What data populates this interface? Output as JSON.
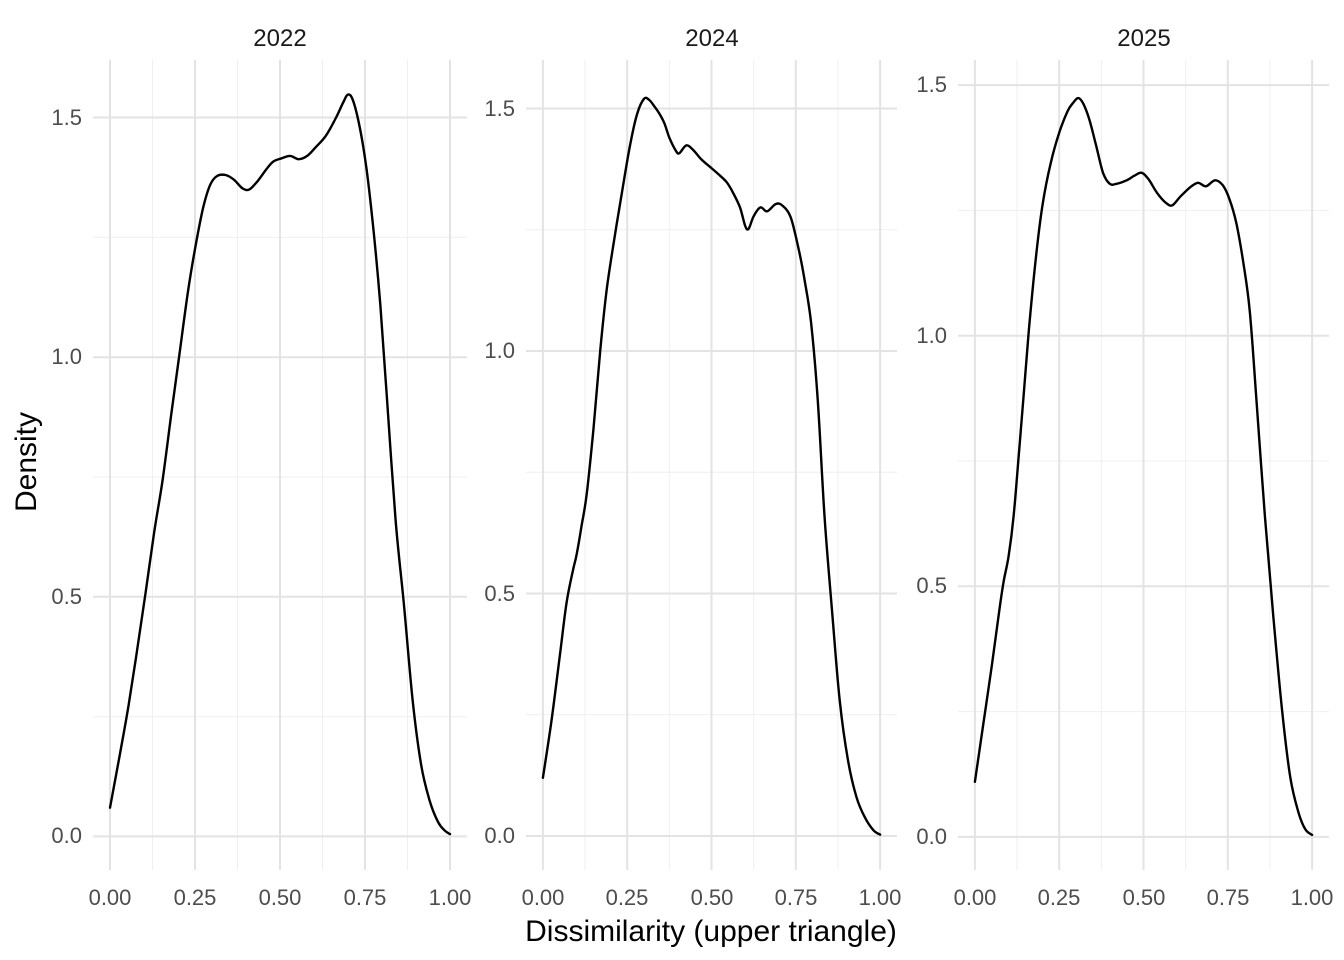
{
  "figure": {
    "x_axis_title": "Dissimilarity (upper triangle)",
    "y_axis_title": "Density",
    "facet_titles": [
      "2022",
      "2024",
      "2025"
    ],
    "colors": {
      "background": "#ffffff",
      "curve": "#000000",
      "grid_major": "#e3e3e3",
      "grid_minor": "#efefef",
      "tick_text": "#4d4d4d",
      "title_text": "#1a1a1a",
      "axis_title_text": "#000000"
    }
  },
  "chart_data": [
    {
      "type": "line",
      "subtype": "kernel-density",
      "title": "2022",
      "xlabel": "Dissimilarity (upper triangle)",
      "ylabel": "Density",
      "legend": "none",
      "grid": "major+minor",
      "xlim": [
        -0.05,
        1.05
      ],
      "ylim": [
        -0.07,
        1.62
      ],
      "x_tick_values": [
        0,
        0.25,
        0.5,
        0.75,
        1
      ],
      "x_tick_labels": [
        "0.00",
        "0.25",
        "0.50",
        "0.75",
        "1.00"
      ],
      "y_tick_values": [
        0,
        0.5,
        1,
        1.5
      ],
      "y_tick_labels": [
        "0.0",
        "0.5",
        "1.0",
        "1.5"
      ],
      "x_minor_gridlines": [
        0.125,
        0.375,
        0.625,
        0.875
      ],
      "y_minor_gridlines": [
        0.25,
        0.75,
        1.25
      ],
      "points": [
        [
          0.0,
          0.06
        ],
        [
          0.03,
          0.175
        ],
        [
          0.055,
          0.275
        ],
        [
          0.08,
          0.39
        ],
        [
          0.105,
          0.51
        ],
        [
          0.13,
          0.635
        ],
        [
          0.155,
          0.745
        ],
        [
          0.18,
          0.88
        ],
        [
          0.205,
          1.01
        ],
        [
          0.23,
          1.14
        ],
        [
          0.255,
          1.245
        ],
        [
          0.275,
          1.315
        ],
        [
          0.295,
          1.36
        ],
        [
          0.315,
          1.378
        ],
        [
          0.34,
          1.38
        ],
        [
          0.365,
          1.37
        ],
        [
          0.39,
          1.352
        ],
        [
          0.41,
          1.35
        ],
        [
          0.435,
          1.368
        ],
        [
          0.46,
          1.392
        ],
        [
          0.48,
          1.408
        ],
        [
          0.505,
          1.415
        ],
        [
          0.53,
          1.42
        ],
        [
          0.555,
          1.413
        ],
        [
          0.58,
          1.42
        ],
        [
          0.605,
          1.438
        ],
        [
          0.635,
          1.462
        ],
        [
          0.665,
          1.5
        ],
        [
          0.685,
          1.53
        ],
        [
          0.7,
          1.548
        ],
        [
          0.715,
          1.535
        ],
        [
          0.735,
          1.478
        ],
        [
          0.755,
          1.39
        ],
        [
          0.775,
          1.265
        ],
        [
          0.795,
          1.11
        ],
        [
          0.815,
          0.91
        ],
        [
          0.84,
          0.66
        ],
        [
          0.865,
          0.48
        ],
        [
          0.89,
          0.285
        ],
        [
          0.915,
          0.15
        ],
        [
          0.94,
          0.075
        ],
        [
          0.965,
          0.03
        ],
        [
          0.985,
          0.012
        ],
        [
          1.0,
          0.005
        ]
      ]
    },
    {
      "type": "line",
      "subtype": "kernel-density",
      "title": "2024",
      "xlabel": "Dissimilarity (upper triangle)",
      "ylabel": "Density",
      "legend": "none",
      "grid": "major+minor",
      "xlim": [
        -0.05,
        1.05
      ],
      "ylim": [
        -0.07,
        1.6
      ],
      "x_tick_values": [
        0,
        0.25,
        0.5,
        0.75,
        1
      ],
      "x_tick_labels": [
        "0.00",
        "0.25",
        "0.50",
        "0.75",
        "1.00"
      ],
      "y_tick_values": [
        0,
        0.5,
        1,
        1.5
      ],
      "y_tick_labels": [
        "0.0",
        "0.5",
        "1.0",
        "1.5"
      ],
      "x_minor_gridlines": [
        0.125,
        0.375,
        0.625,
        0.875
      ],
      "y_minor_gridlines": [
        0.25,
        0.75,
        1.25
      ],
      "points": [
        [
          0.0,
          0.12
        ],
        [
          0.025,
          0.235
        ],
        [
          0.05,
          0.37
        ],
        [
          0.07,
          0.48
        ],
        [
          0.09,
          0.55
        ],
        [
          0.1,
          0.58
        ],
        [
          0.115,
          0.64
        ],
        [
          0.13,
          0.705
        ],
        [
          0.15,
          0.84
        ],
        [
          0.17,
          1.0
        ],
        [
          0.19,
          1.13
        ],
        [
          0.215,
          1.245
        ],
        [
          0.24,
          1.35
        ],
        [
          0.26,
          1.43
        ],
        [
          0.28,
          1.49
        ],
        [
          0.3,
          1.52
        ],
        [
          0.315,
          1.518
        ],
        [
          0.33,
          1.505
        ],
        [
          0.345,
          1.49
        ],
        [
          0.36,
          1.47
        ],
        [
          0.375,
          1.44
        ],
        [
          0.395,
          1.412
        ],
        [
          0.405,
          1.408
        ],
        [
          0.425,
          1.424
        ],
        [
          0.445,
          1.415
        ],
        [
          0.47,
          1.395
        ],
        [
          0.495,
          1.38
        ],
        [
          0.52,
          1.365
        ],
        [
          0.545,
          1.348
        ],
        [
          0.565,
          1.325
        ],
        [
          0.585,
          1.295
        ],
        [
          0.6,
          1.258
        ],
        [
          0.61,
          1.252
        ],
        [
          0.625,
          1.278
        ],
        [
          0.645,
          1.296
        ],
        [
          0.665,
          1.288
        ],
        [
          0.69,
          1.303
        ],
        [
          0.71,
          1.3
        ],
        [
          0.735,
          1.275
        ],
        [
          0.76,
          1.205
        ],
        [
          0.775,
          1.15
        ],
        [
          0.795,
          1.06
        ],
        [
          0.815,
          0.9
        ],
        [
          0.835,
          0.66
        ],
        [
          0.858,
          0.46
        ],
        [
          0.88,
          0.28
        ],
        [
          0.905,
          0.155
        ],
        [
          0.93,
          0.08
        ],
        [
          0.955,
          0.038
        ],
        [
          0.98,
          0.012
        ],
        [
          1.0,
          0.003
        ]
      ]
    },
    {
      "type": "line",
      "subtype": "kernel-density",
      "title": "2025",
      "xlabel": "Dissimilarity (upper triangle)",
      "ylabel": "Density",
      "legend": "none",
      "grid": "major+minor",
      "xlim": [
        -0.05,
        1.05
      ],
      "ylim": [
        -0.066,
        1.55
      ],
      "x_tick_values": [
        0,
        0.25,
        0.5,
        0.75,
        1
      ],
      "x_tick_labels": [
        "0.00",
        "0.25",
        "0.50",
        "0.75",
        "1.00"
      ],
      "y_tick_values": [
        0,
        0.5,
        1,
        1.5
      ],
      "y_tick_labels": [
        "0.0",
        "0.5",
        "1.0",
        "1.5"
      ],
      "x_minor_gridlines": [
        0.125,
        0.375,
        0.625,
        0.875
      ],
      "y_minor_gridlines": [
        0.25,
        0.75,
        1.25
      ],
      "points": [
        [
          0.0,
          0.11
        ],
        [
          0.025,
          0.225
        ],
        [
          0.05,
          0.34
        ],
        [
          0.07,
          0.44
        ],
        [
          0.085,
          0.508
        ],
        [
          0.1,
          0.56
        ],
        [
          0.115,
          0.64
        ],
        [
          0.13,
          0.76
        ],
        [
          0.145,
          0.885
        ],
        [
          0.16,
          1.01
        ],
        [
          0.18,
          1.15
        ],
        [
          0.2,
          1.258
        ],
        [
          0.225,
          1.345
        ],
        [
          0.25,
          1.405
        ],
        [
          0.275,
          1.448
        ],
        [
          0.292,
          1.465
        ],
        [
          0.307,
          1.474
        ],
        [
          0.322,
          1.462
        ],
        [
          0.34,
          1.43
        ],
        [
          0.36,
          1.378
        ],
        [
          0.38,
          1.325
        ],
        [
          0.4,
          1.303
        ],
        [
          0.42,
          1.303
        ],
        [
          0.45,
          1.31
        ],
        [
          0.475,
          1.32
        ],
        [
          0.495,
          1.325
        ],
        [
          0.515,
          1.312
        ],
        [
          0.54,
          1.285
        ],
        [
          0.565,
          1.266
        ],
        [
          0.585,
          1.26
        ],
        [
          0.61,
          1.278
        ],
        [
          0.64,
          1.297
        ],
        [
          0.662,
          1.305
        ],
        [
          0.685,
          1.298
        ],
        [
          0.712,
          1.31
        ],
        [
          0.735,
          1.3
        ],
        [
          0.755,
          1.272
        ],
        [
          0.775,
          1.225
        ],
        [
          0.795,
          1.15
        ],
        [
          0.815,
          1.05
        ],
        [
          0.835,
          0.87
        ],
        [
          0.86,
          0.64
        ],
        [
          0.885,
          0.44
        ],
        [
          0.91,
          0.258
        ],
        [
          0.935,
          0.12
        ],
        [
          0.96,
          0.048
        ],
        [
          0.98,
          0.015
        ],
        [
          1.0,
          0.004
        ]
      ]
    }
  ]
}
